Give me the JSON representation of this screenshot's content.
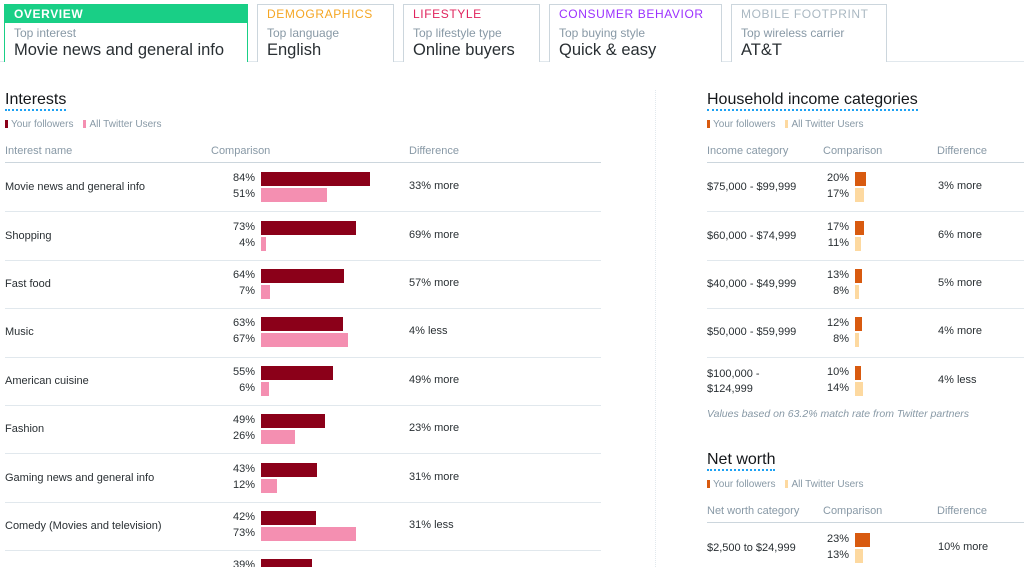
{
  "tabs": [
    {
      "head": "OVERVIEW",
      "sub": "Top interest",
      "value": "Movie news and general info",
      "color": "#19cf86"
    },
    {
      "head": "DEMOGRAPHICS",
      "sub": "Top language",
      "value": "English",
      "color": "#f5a623"
    },
    {
      "head": "LIFESTYLE",
      "sub": "Top lifestyle type",
      "value": "Online buyers",
      "color": "#e0245e"
    },
    {
      "head": "CONSUMER BEHAVIOR",
      "sub": "Top buying style",
      "value": "Quick & easy",
      "color": "#9b30ff"
    },
    {
      "head": "MOBILE FOOTPRINT",
      "sub": "Top wireless carrier",
      "value": "AT&T",
      "color": "#aab8c2"
    }
  ],
  "colors": {
    "interest_followers": "#8b0019",
    "interest_all": "#f48fb1",
    "income_followers": "#d85a0f",
    "income_all": "#fdd9a0"
  },
  "interests": {
    "title": "Interests",
    "legend_followers": "Your followers",
    "legend_all": "All Twitter Users",
    "col_name": "Interest name",
    "col_comparison": "Comparison",
    "col_difference": "Difference",
    "rows": [
      {
        "name": "Movie news and general info",
        "followers": 84,
        "all": 51,
        "f_label": "84%",
        "a_label": "51%",
        "diff": "33% more"
      },
      {
        "name": "Shopping",
        "followers": 73,
        "all": 4,
        "f_label": "73%",
        "a_label": "4%",
        "diff": "69% more"
      },
      {
        "name": "Fast food",
        "followers": 64,
        "all": 7,
        "f_label": "64%",
        "a_label": "7%",
        "diff": "57% more"
      },
      {
        "name": "Music",
        "followers": 63,
        "all": 67,
        "f_label": "63%",
        "a_label": "67%",
        "diff": "4% less"
      },
      {
        "name": "American cuisine",
        "followers": 55,
        "all": 6,
        "f_label": "55%",
        "a_label": "6%",
        "diff": "49% more"
      },
      {
        "name": "Fashion",
        "followers": 49,
        "all": 26,
        "f_label": "49%",
        "a_label": "26%",
        "diff": "23% more"
      },
      {
        "name": "Gaming news and general info",
        "followers": 43,
        "all": 12,
        "f_label": "43%",
        "a_label": "12%",
        "diff": "31% more"
      },
      {
        "name": "Comedy (Movies and television)",
        "followers": 42,
        "all": 73,
        "f_label": "42%",
        "a_label": "73%",
        "diff": "31% less"
      },
      {
        "name": "",
        "followers": 39,
        "all": 0,
        "f_label": "39%",
        "a_label": "",
        "diff": ""
      }
    ]
  },
  "income": {
    "title": "Household income categories",
    "legend_followers": "Your followers",
    "legend_all": "All Twitter Users",
    "col_name": "Income category",
    "col_comparison": "Comparison",
    "col_difference": "Difference",
    "rows": [
      {
        "name": "$75,000 - $99,999",
        "followers": 20,
        "all": 17,
        "f_label": "20%",
        "a_label": "17%",
        "diff": "3% more"
      },
      {
        "name": "$60,000 - $74,999",
        "followers": 17,
        "all": 11,
        "f_label": "17%",
        "a_label": "11%",
        "diff": "6% more"
      },
      {
        "name": "$40,000 - $49,999",
        "followers": 13,
        "all": 8,
        "f_label": "13%",
        "a_label": "8%",
        "diff": "5% more"
      },
      {
        "name": "$50,000 - $59,999",
        "followers": 12,
        "all": 8,
        "f_label": "12%",
        "a_label": "8%",
        "diff": "4% more"
      },
      {
        "name": "$100,000 -\n$124,999",
        "followers": 10,
        "all": 14,
        "f_label": "10%",
        "a_label": "14%",
        "diff": "4% less"
      }
    ],
    "note": "Values based on 63.2% match rate from Twitter partners"
  },
  "networth": {
    "title": "Net worth",
    "legend_followers": "Your followers",
    "legend_all": "All Twitter Users",
    "col_name": "Net worth category",
    "col_comparison": "Comparison",
    "col_difference": "Difference",
    "rows": [
      {
        "name": "$2,500 to $24,999",
        "followers": 23,
        "all": 13,
        "f_label": "23%",
        "a_label": "13%",
        "diff": "10% more"
      }
    ]
  },
  "chart_data": [
    {
      "type": "bar",
      "title": "Interests",
      "categories": [
        "Movie news and general info",
        "Shopping",
        "Fast food",
        "Music",
        "American cuisine",
        "Fashion",
        "Gaming news and general info",
        "Comedy (Movies and television)"
      ],
      "series": [
        {
          "name": "Your followers",
          "values": [
            84,
            73,
            64,
            63,
            55,
            49,
            43,
            42
          ]
        },
        {
          "name": "All Twitter Users",
          "values": [
            51,
            4,
            7,
            67,
            6,
            26,
            12,
            73
          ]
        }
      ],
      "unit": "%"
    },
    {
      "type": "bar",
      "title": "Household income categories",
      "categories": [
        "$75,000 - $99,999",
        "$60,000 - $74,999",
        "$40,000 - $49,999",
        "$50,000 - $59,999",
        "$100,000 - $124,999"
      ],
      "series": [
        {
          "name": "Your followers",
          "values": [
            20,
            17,
            13,
            12,
            10
          ]
        },
        {
          "name": "All Twitter Users",
          "values": [
            17,
            11,
            8,
            8,
            14
          ]
        }
      ],
      "unit": "%"
    },
    {
      "type": "bar",
      "title": "Net worth",
      "categories": [
        "$2,500 to $24,999"
      ],
      "series": [
        {
          "name": "Your followers",
          "values": [
            23
          ]
        },
        {
          "name": "All Twitter Users",
          "values": [
            13
          ]
        }
      ],
      "unit": "%"
    }
  ]
}
